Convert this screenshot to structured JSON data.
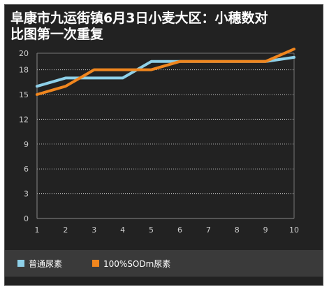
{
  "title_lines": [
    "阜康市九运街镇6月3日小麦大区：小穗数对",
    "比图第一次重复"
  ],
  "colors": {
    "series1": "#8ed0e8",
    "series2": "#f0861e",
    "background": "#222222"
  },
  "chart_data": {
    "type": "line",
    "title": "阜康市九运街镇6月3日小麦大区：小穗数对比图第一次重复",
    "xlabel": "",
    "ylabel": "",
    "x": [
      1,
      2,
      3,
      4,
      5,
      6,
      7,
      8,
      9,
      10
    ],
    "xlim": [
      1,
      10
    ],
    "ylim": [
      0,
      20
    ],
    "yticks": [
      0,
      3,
      6,
      9,
      12,
      15,
      18,
      20
    ],
    "grid": true,
    "legend_position": "bottom",
    "series": [
      {
        "name": "普通尿素",
        "color": "#8ed0e8",
        "values": [
          16,
          17,
          17,
          17,
          19,
          19,
          19,
          19,
          19,
          19.5
        ]
      },
      {
        "name": "100%SODm尿素",
        "color": "#f0861e",
        "values": [
          15,
          16,
          18,
          18,
          18,
          19,
          19,
          19,
          19,
          20.5
        ]
      }
    ]
  }
}
